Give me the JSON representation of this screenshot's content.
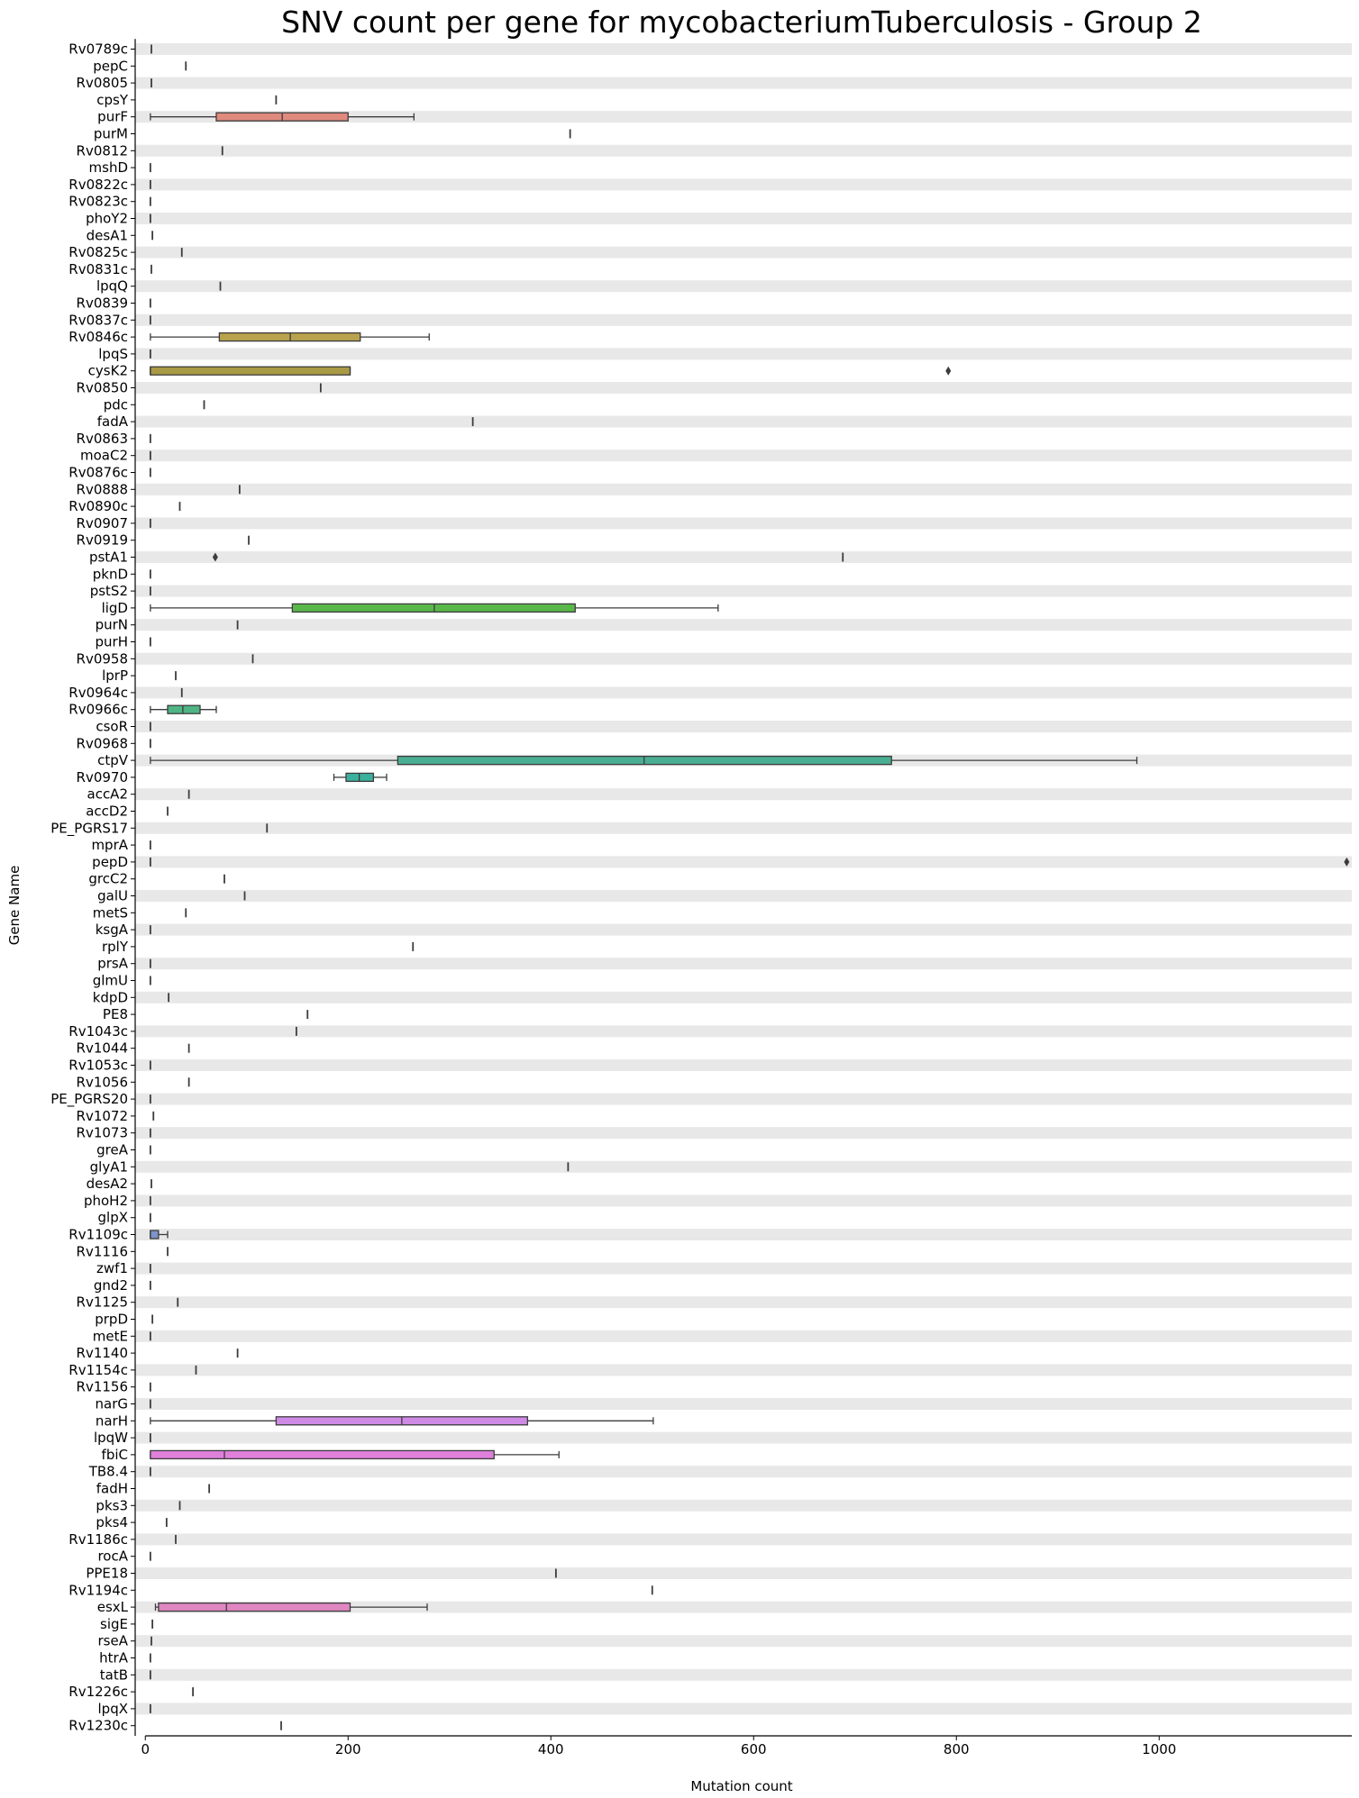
{
  "chart_data": {
    "type": "box",
    "orientation": "horizontal",
    "title": "SNV count per gene for mycobacteriumTuberculosis - Group 2",
    "xlabel": "Mutation count",
    "ylabel": "Gene Name",
    "xlim": [
      -10,
      1190
    ],
    "xticks": [
      0,
      200,
      400,
      600,
      800,
      1000
    ],
    "background_bands": true,
    "grid": false,
    "categories": [
      "Rv0789c",
      "pepC",
      "Rv0805",
      "cpsY",
      "purF",
      "purM",
      "Rv0812",
      "mshD",
      "Rv0822c",
      "Rv0823c",
      "phoY2",
      "desA1",
      "Rv0825c",
      "Rv0831c",
      "lpqQ",
      "Rv0839",
      "Rv0837c",
      "Rv0846c",
      "lpqS",
      "cysK2",
      "Rv0850",
      "pdc",
      "fadA",
      "Rv0863",
      "moaC2",
      "Rv0876c",
      "Rv0888",
      "Rv0890c",
      "Rv0907",
      "Rv0919",
      "pstA1",
      "pknD",
      "pstS2",
      "ligD",
      "purN",
      "purH",
      "Rv0958",
      "lprP",
      "Rv0964c",
      "Rv0966c",
      "csoR",
      "Rv0968",
      "ctpV",
      "Rv0970",
      "accA2",
      "accD2",
      "PE_PGRS17",
      "mprA",
      "pepD",
      "grcC2",
      "galU",
      "metS",
      "ksgA",
      "rplY",
      "prsA",
      "glmU",
      "kdpD",
      "PE8",
      "Rv1043c",
      "Rv1044",
      "Rv1053c",
      "Rv1056",
      "PE_PGRS20",
      "Rv1072",
      "Rv1073",
      "greA",
      "glyA1",
      "desA2",
      "phoH2",
      "glpX",
      "Rv1109c",
      "Rv1116",
      "zwf1",
      "gnd2",
      "Rv1125",
      "prpD",
      "metE",
      "Rv1140",
      "Rv1154c",
      "Rv1156",
      "narG",
      "narH",
      "lpqW",
      "fbiC",
      "TB8.4",
      "fadH",
      "pks3",
      "pks4",
      "Rv1186c",
      "rocA",
      "PPE18",
      "Rv1194c",
      "esxL",
      "sigE",
      "rseA",
      "htrA",
      "tatB",
      "Rv1226c",
      "lpqX",
      "Rv1230c"
    ],
    "boxes": [
      {
        "gene": "purF",
        "whislo": 5,
        "q1": 70,
        "med": 135,
        "q3": 200,
        "whishi": 265,
        "color": "#e08a7e"
      },
      {
        "gene": "Rv0846c",
        "whislo": 5,
        "q1": 73,
        "med": 143,
        "q3": 212,
        "whishi": 280,
        "color": "#b9a24d"
      },
      {
        "gene": "cysK2",
        "whislo": 5,
        "q1": 5,
        "med": 5,
        "q3": 202,
        "whishi": 202,
        "color": "#a89a45",
        "fliers": [
          792
        ]
      },
      {
        "gene": "ligD",
        "whislo": 5,
        "q1": 145,
        "med": 285,
        "q3": 424,
        "whishi": 565,
        "color": "#5ab84a"
      },
      {
        "gene": "Rv0966c",
        "whislo": 5,
        "q1": 22,
        "med": 37,
        "q3": 54,
        "whishi": 70,
        "color": "#4fb584"
      },
      {
        "gene": "ctpV",
        "whislo": 5,
        "q1": 249,
        "med": 492,
        "q3": 736,
        "whishi": 978,
        "color": "#4aae93"
      },
      {
        "gene": "Rv0970",
        "whislo": 186,
        "q1": 198,
        "med": 211,
        "q3": 225,
        "whishi": 238,
        "color": "#3bb19d"
      },
      {
        "gene": "Rv1109c",
        "whislo": 5,
        "q1": 5,
        "med": 5,
        "q3": 13,
        "whishi": 22,
        "color": "#7d93c9"
      },
      {
        "gene": "narH",
        "whislo": 5,
        "q1": 129,
        "med": 253,
        "q3": 377,
        "whishi": 501,
        "color": "#cf8ae6"
      },
      {
        "gene": "fbiC",
        "whislo": 5,
        "q1": 5,
        "med": 78,
        "q3": 344,
        "whishi": 408,
        "color": "#df80db"
      },
      {
        "gene": "esxL",
        "whislo": 10,
        "q1": 13,
        "med": 80,
        "q3": 202,
        "whishi": 278,
        "color": "#e087c2"
      }
    ],
    "single_values": [
      {
        "gene": "Rv0789c",
        "value": 6
      },
      {
        "gene": "pepC",
        "value": 40
      },
      {
        "gene": "Rv0805",
        "value": 6
      },
      {
        "gene": "cpsY",
        "value": 129
      },
      {
        "gene": "purM",
        "value": 419
      },
      {
        "gene": "Rv0812",
        "value": 76
      },
      {
        "gene": "mshD",
        "value": 5
      },
      {
        "gene": "Rv0822c",
        "value": 5
      },
      {
        "gene": "Rv0823c",
        "value": 5
      },
      {
        "gene": "phoY2",
        "value": 5
      },
      {
        "gene": "desA1",
        "value": 7
      },
      {
        "gene": "Rv0825c",
        "value": 36
      },
      {
        "gene": "Rv0831c",
        "value": 6
      },
      {
        "gene": "lpqQ",
        "value": 74
      },
      {
        "gene": "Rv0839",
        "value": 5
      },
      {
        "gene": "Rv0837c",
        "value": 5
      },
      {
        "gene": "lpqS",
        "value": 5
      },
      {
        "gene": "Rv0850",
        "value": 173
      },
      {
        "gene": "pdc",
        "value": 58
      },
      {
        "gene": "fadA",
        "value": 323
      },
      {
        "gene": "Rv0863",
        "value": 5
      },
      {
        "gene": "moaC2",
        "value": 5
      },
      {
        "gene": "Rv0876c",
        "value": 5
      },
      {
        "gene": "Rv0888",
        "value": 93
      },
      {
        "gene": "Rv0890c",
        "value": 34
      },
      {
        "gene": "Rv0907",
        "value": 5
      },
      {
        "gene": "Rv0919",
        "value": 102
      },
      {
        "gene": "pstA1",
        "value": 688,
        "fliers": [
          69
        ]
      },
      {
        "gene": "pknD",
        "value": 5
      },
      {
        "gene": "pstS2",
        "value": 5
      },
      {
        "gene": "purN",
        "value": 91
      },
      {
        "gene": "purH",
        "value": 5
      },
      {
        "gene": "Rv0958",
        "value": 106
      },
      {
        "gene": "lprP",
        "value": 30
      },
      {
        "gene": "Rv0964c",
        "value": 36
      },
      {
        "gene": "csoR",
        "value": 5
      },
      {
        "gene": "Rv0968",
        "value": 5
      },
      {
        "gene": "accA2",
        "value": 43
      },
      {
        "gene": "accD2",
        "value": 22
      },
      {
        "gene": "PE_PGRS17",
        "value": 120
      },
      {
        "gene": "mprA",
        "value": 5
      },
      {
        "gene": "pepD",
        "value": 5,
        "fliers": [
          1185
        ]
      },
      {
        "gene": "grcC2",
        "value": 78
      },
      {
        "gene": "galU",
        "value": 98
      },
      {
        "gene": "metS",
        "value": 40
      },
      {
        "gene": "ksgA",
        "value": 5
      },
      {
        "gene": "rplY",
        "value": 264
      },
      {
        "gene": "prsA",
        "value": 5
      },
      {
        "gene": "glmU",
        "value": 5
      },
      {
        "gene": "kdpD",
        "value": 23
      },
      {
        "gene": "PE8",
        "value": 160
      },
      {
        "gene": "Rv1043c",
        "value": 149
      },
      {
        "gene": "Rv1044",
        "value": 43
      },
      {
        "gene": "Rv1053c",
        "value": 5
      },
      {
        "gene": "Rv1056",
        "value": 43
      },
      {
        "gene": "PE_PGRS20",
        "value": 5
      },
      {
        "gene": "Rv1072",
        "value": 8
      },
      {
        "gene": "Rv1073",
        "value": 5
      },
      {
        "gene": "greA",
        "value": 5
      },
      {
        "gene": "glyA1",
        "value": 417
      },
      {
        "gene": "desA2",
        "value": 6
      },
      {
        "gene": "phoH2",
        "value": 5
      },
      {
        "gene": "glpX",
        "value": 5
      },
      {
        "gene": "Rv1116",
        "value": 22
      },
      {
        "gene": "zwf1",
        "value": 5
      },
      {
        "gene": "gnd2",
        "value": 5
      },
      {
        "gene": "Rv1125",
        "value": 32
      },
      {
        "gene": "prpD",
        "value": 7
      },
      {
        "gene": "metE",
        "value": 5
      },
      {
        "gene": "Rv1140",
        "value": 91
      },
      {
        "gene": "Rv1154c",
        "value": 50
      },
      {
        "gene": "Rv1156",
        "value": 5
      },
      {
        "gene": "narG",
        "value": 5
      },
      {
        "gene": "lpqW",
        "value": 5
      },
      {
        "gene": "TB8.4",
        "value": 5
      },
      {
        "gene": "fadH",
        "value": 63
      },
      {
        "gene": "pks3",
        "value": 34
      },
      {
        "gene": "pks4",
        "value": 21
      },
      {
        "gene": "Rv1186c",
        "value": 30
      },
      {
        "gene": "rocA",
        "value": 5
      },
      {
        "gene": "PPE18",
        "value": 405
      },
      {
        "gene": "Rv1194c",
        "value": 500
      },
      {
        "gene": "sigE",
        "value": 7
      },
      {
        "gene": "rseA",
        "value": 6
      },
      {
        "gene": "htrA",
        "value": 5
      },
      {
        "gene": "tatB",
        "value": 5
      },
      {
        "gene": "Rv1226c",
        "value": 47
      },
      {
        "gene": "lpqX",
        "value": 5
      },
      {
        "gene": "Rv1230c",
        "value": 134
      }
    ],
    "colors": {
      "band": "#e8e8e8",
      "line": "#3c3c3c",
      "flier": "#3c3c3c"
    }
  }
}
